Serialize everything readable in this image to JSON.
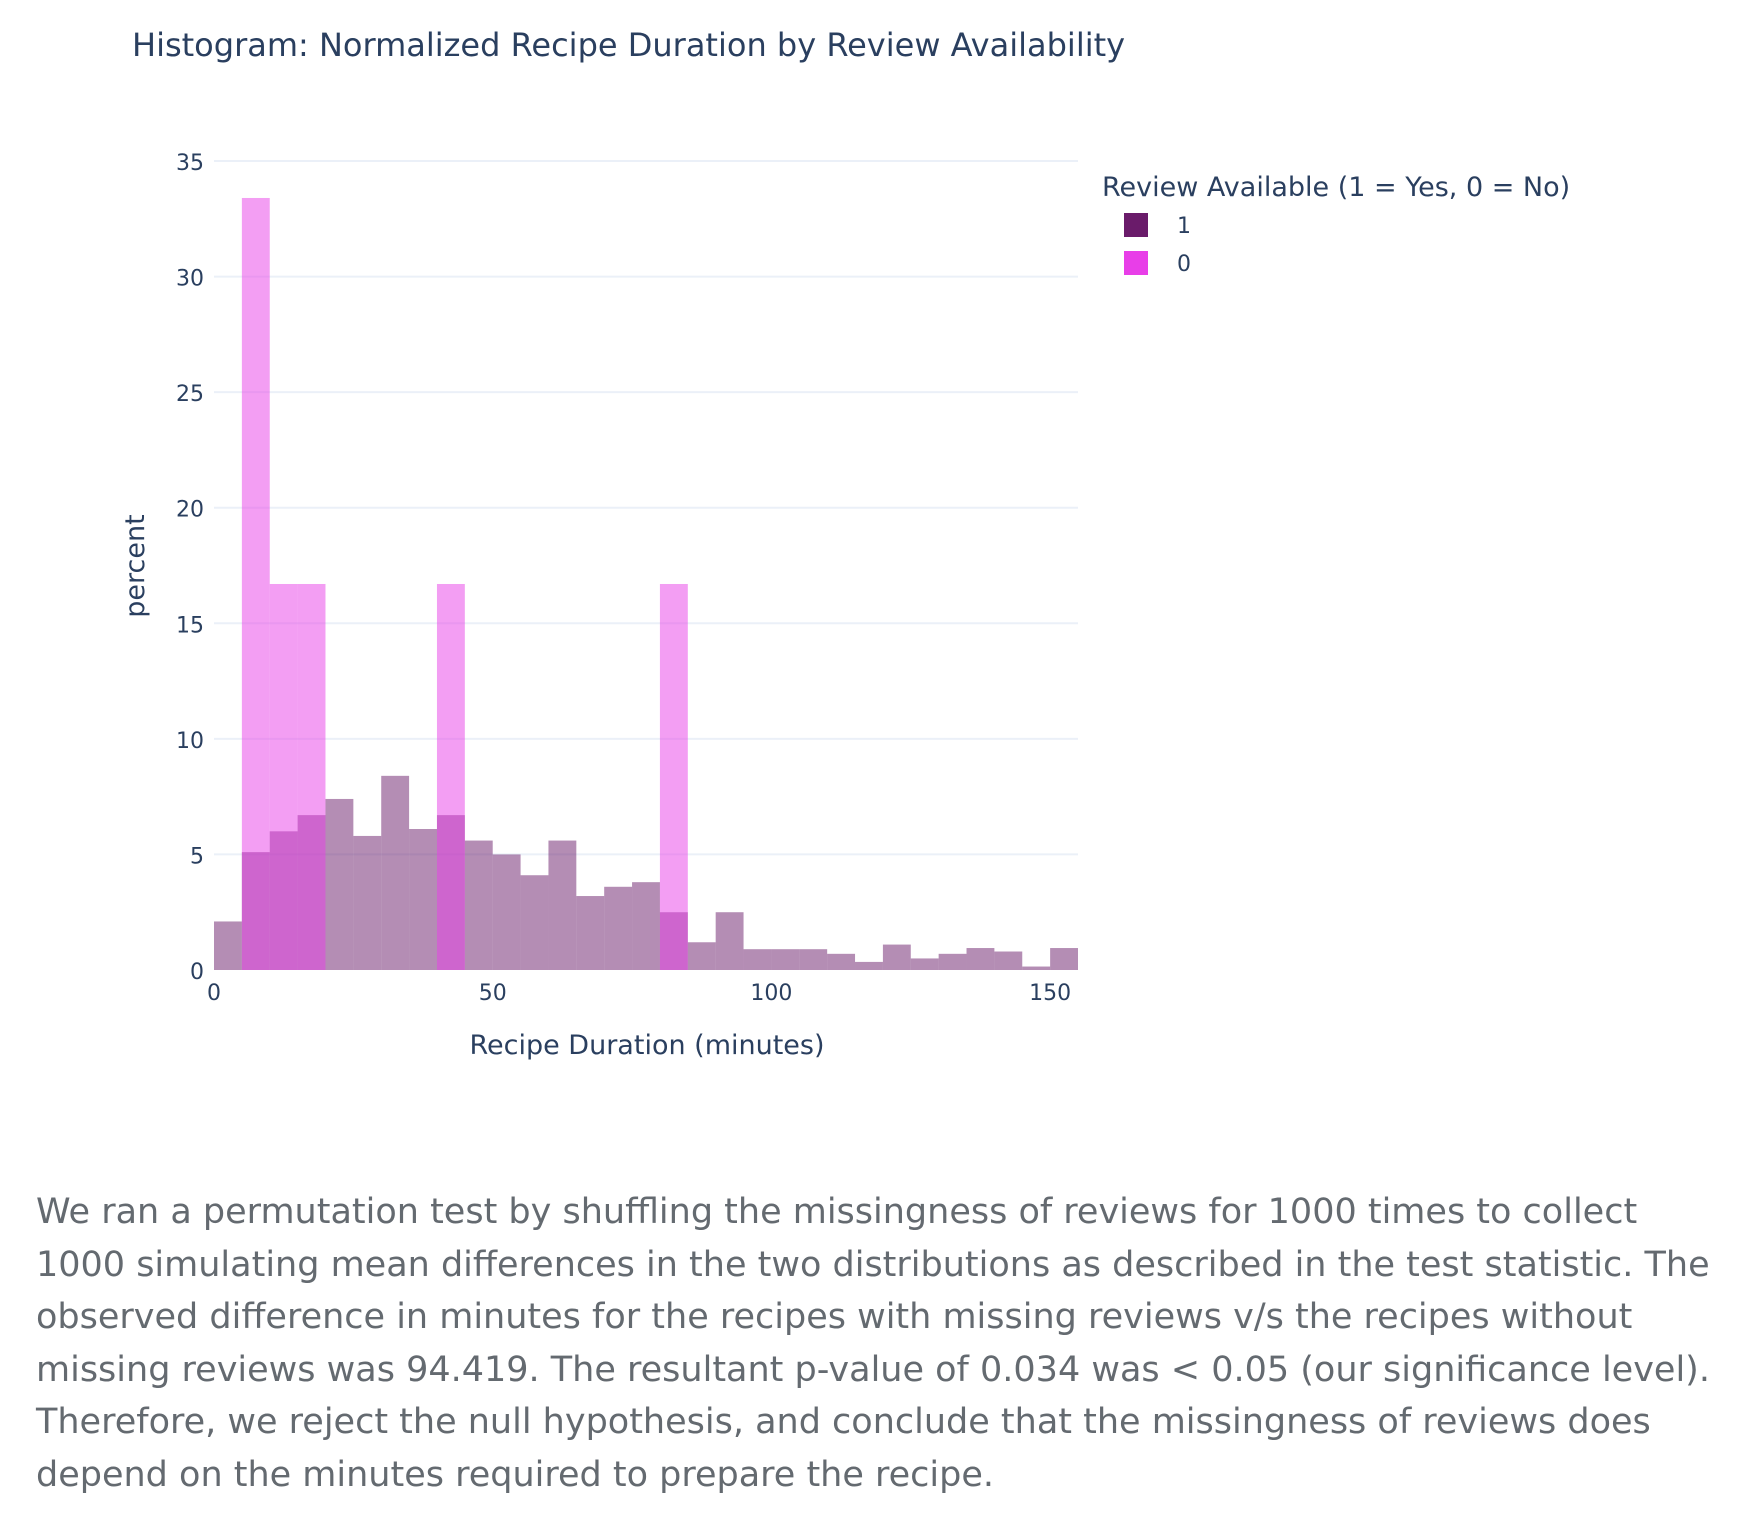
{
  "chart_data": {
    "type": "bar",
    "subtype": "overlaid-histogram",
    "title": "Histogram: Normalized Recipe Duration by Review Availability",
    "xlabel": "Recipe Duration (minutes)",
    "ylabel": "percent",
    "xlim": [
      0,
      155
    ],
    "ylim": [
      0,
      35
    ],
    "xticks": [
      0,
      50,
      100,
      150
    ],
    "yticks": [
      0,
      5,
      10,
      15,
      20,
      25,
      30,
      35
    ],
    "grid": true,
    "legend_title": "Review Available (1 = Yes, 0 = No)",
    "legend_position": "top-right",
    "bin_width": 5,
    "series": [
      {
        "name": "1",
        "color": "#6a1b6a",
        "bins": [
          {
            "x0": 0,
            "value": 2.1
          },
          {
            "x0": 5,
            "value": 5.1
          },
          {
            "x0": 10,
            "value": 6.0
          },
          {
            "x0": 15,
            "value": 6.7
          },
          {
            "x0": 20,
            "value": 7.4
          },
          {
            "x0": 25,
            "value": 5.8
          },
          {
            "x0": 30,
            "value": 8.4
          },
          {
            "x0": 35,
            "value": 6.1
          },
          {
            "x0": 40,
            "value": 6.7
          },
          {
            "x0": 45,
            "value": 5.6
          },
          {
            "x0": 50,
            "value": 5.0
          },
          {
            "x0": 55,
            "value": 4.1
          },
          {
            "x0": 60,
            "value": 5.6
          },
          {
            "x0": 65,
            "value": 3.2
          },
          {
            "x0": 70,
            "value": 3.6
          },
          {
            "x0": 75,
            "value": 3.8
          },
          {
            "x0": 80,
            "value": 2.5
          },
          {
            "x0": 85,
            "value": 1.2
          },
          {
            "x0": 90,
            "value": 2.5
          },
          {
            "x0": 95,
            "value": 0.9
          },
          {
            "x0": 100,
            "value": 0.9
          },
          {
            "x0": 105,
            "value": 0.9
          },
          {
            "x0": 110,
            "value": 0.7
          },
          {
            "x0": 115,
            "value": 0.35
          },
          {
            "x0": 120,
            "value": 1.1
          },
          {
            "x0": 125,
            "value": 0.5
          },
          {
            "x0": 130,
            "value": 0.7
          },
          {
            "x0": 135,
            "value": 0.95
          },
          {
            "x0": 140,
            "value": 0.8
          },
          {
            "x0": 145,
            "value": 0.15
          },
          {
            "x0": 150,
            "value": 0.95
          }
        ]
      },
      {
        "name": "0",
        "color": "#e83ee8",
        "bins": [
          {
            "x0": 5,
            "value": 33.4
          },
          {
            "x0": 10,
            "value": 16.7
          },
          {
            "x0": 15,
            "value": 16.7
          },
          {
            "x0": 40,
            "value": 16.7
          },
          {
            "x0": 80,
            "value": 16.7
          }
        ]
      }
    ]
  },
  "paragraph": "We ran a permutation test by shuffling the missingness of reviews for 1000 times to collect 1000 simulating mean differences in the two distributions as described in the test statistic. The observed difference in minutes for the recipes with missing reviews v/s the recipes without missing reviews was 94.419. The resultant p-value of 0.034 was < 0.05 (our significance level). Therefore, we reject the null hypothesis, and conclude that the missingness of reviews does depend on the minutes required to prepare the recipe."
}
